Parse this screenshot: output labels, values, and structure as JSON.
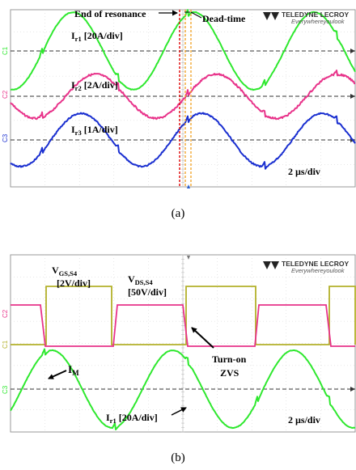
{
  "colors": {
    "green": "#2ee82e",
    "magenta": "#e8338a",
    "blue": "#1a2fd0",
    "olive": "#b3b12a",
    "red_marker": "#e01010",
    "orange_marker": "#f0a020",
    "grid": "#cfcfcf",
    "frame": "#9a9a9a"
  },
  "chart_data": [
    {
      "type": "line",
      "caption": "(a)",
      "brand": {
        "name": "TELEDYNE LECROY",
        "tagline": "Everywhereyoulook"
      },
      "timebase_label": "2 µs/div",
      "grid": true,
      "divisions": {
        "x": 10,
        "y": 8
      },
      "annotations": [
        {
          "text": "End of resonance"
        },
        {
          "text": "Dead-time"
        }
      ],
      "series": [
        {
          "name": "Ir1",
          "label_main": "I",
          "label_sub": "r1",
          "label_tail": " [20A/div]",
          "color": "green",
          "channel_marker": "C1",
          "amplitude_div": 1.75,
          "period_us": 7.0,
          "phase_us": -0.2
        },
        {
          "name": "Ir2",
          "label_main": "I",
          "label_sub": "r2",
          "label_tail": " [2A/div]",
          "color": "magenta",
          "channel_marker": "C2",
          "amplitude_div": 1.0,
          "period_us": 7.0,
          "phase_us": 0.9
        },
        {
          "name": "Ir3",
          "label_main": "I",
          "label_sub": "r3",
          "label_tail": " [1A/div]",
          "color": "blue",
          "channel_marker": "C3",
          "amplitude_div": 1.2,
          "period_us": 7.0,
          "phase_us": -0.4
        }
      ]
    },
    {
      "type": "line",
      "caption": "(b)",
      "brand": {
        "name": "TELEDYNE LECROY",
        "tagline": "Everywhereyoulook"
      },
      "timebase_label": "2 µs/div",
      "grid": true,
      "divisions": {
        "x": 10,
        "y": 8
      },
      "series": [
        {
          "name": "VGS,S4",
          "label_main": "V",
          "label_sub": "GS,S4",
          "label_line2": "[2V/div]",
          "color": "olive",
          "channel_marker": "C1"
        },
        {
          "name": "VDS,S4",
          "label_main": "V",
          "label_sub": "DS,S4",
          "label_line2": "[50V/div]",
          "color": "magenta",
          "channel_marker": "C2"
        },
        {
          "name": "Ir1",
          "label_main": "I",
          "label_sub": "r1",
          "label_tail": " [20A/div]",
          "color": "green",
          "channel_marker": "C3",
          "amplitude_div": 1.75,
          "period_us": 7.0
        }
      ],
      "annotations": [
        {
          "text_main": "I",
          "text_sub": "M"
        },
        {
          "line1": "Turn-on",
          "line2": "ZVS"
        }
      ]
    }
  ]
}
